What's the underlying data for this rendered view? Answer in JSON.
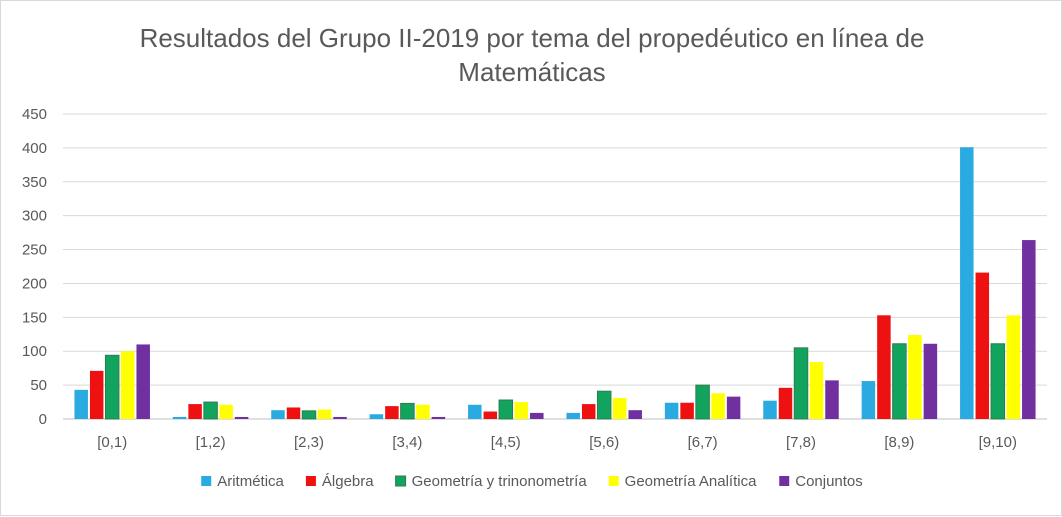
{
  "chart_data": {
    "type": "bar",
    "title_lines": [
      "Resultados del Grupo II-2019 por tema del propedéutico en línea de",
      "Matemáticas"
    ],
    "xlabel": "",
    "ylabel": "",
    "ylim": [
      0,
      450
    ],
    "yticks": [
      "0",
      "50",
      "100",
      "150",
      "200",
      "250",
      "300",
      "350",
      "400",
      "450"
    ],
    "grid": true,
    "legend_position": "bottom",
    "categories": [
      "[0,1)",
      "[1,2)",
      "[2,3)",
      "[3,4)",
      "[4,5)",
      "[5,6)",
      "[6,7)",
      "[7,8)",
      "[8,9)",
      "[9,10)"
    ],
    "series": [
      {
        "name": "Aritmética",
        "color": "#29abe2",
        "values": [
          43,
          3,
          13,
          7,
          21,
          9,
          24,
          27,
          56,
          401
        ]
      },
      {
        "name": "Álgebra",
        "color": "#ee1111",
        "values": [
          71,
          22,
          17,
          19,
          11,
          22,
          24,
          46,
          153,
          216
        ]
      },
      {
        "name": "Geometría y trinonometría",
        "color": "#12a35f",
        "values": [
          94,
          25,
          12,
          23,
          28,
          41,
          50,
          105,
          111,
          111
        ]
      },
      {
        "name": "Geometría Analítica",
        "color": "#ffff00",
        "values": [
          100,
          21,
          14,
          21,
          25,
          31,
          38,
          84,
          124,
          153
        ]
      },
      {
        "name": "Conjuntos",
        "color": "#7030a0",
        "values": [
          110,
          3,
          3,
          3,
          9,
          13,
          33,
          57,
          111,
          264
        ]
      }
    ]
  }
}
